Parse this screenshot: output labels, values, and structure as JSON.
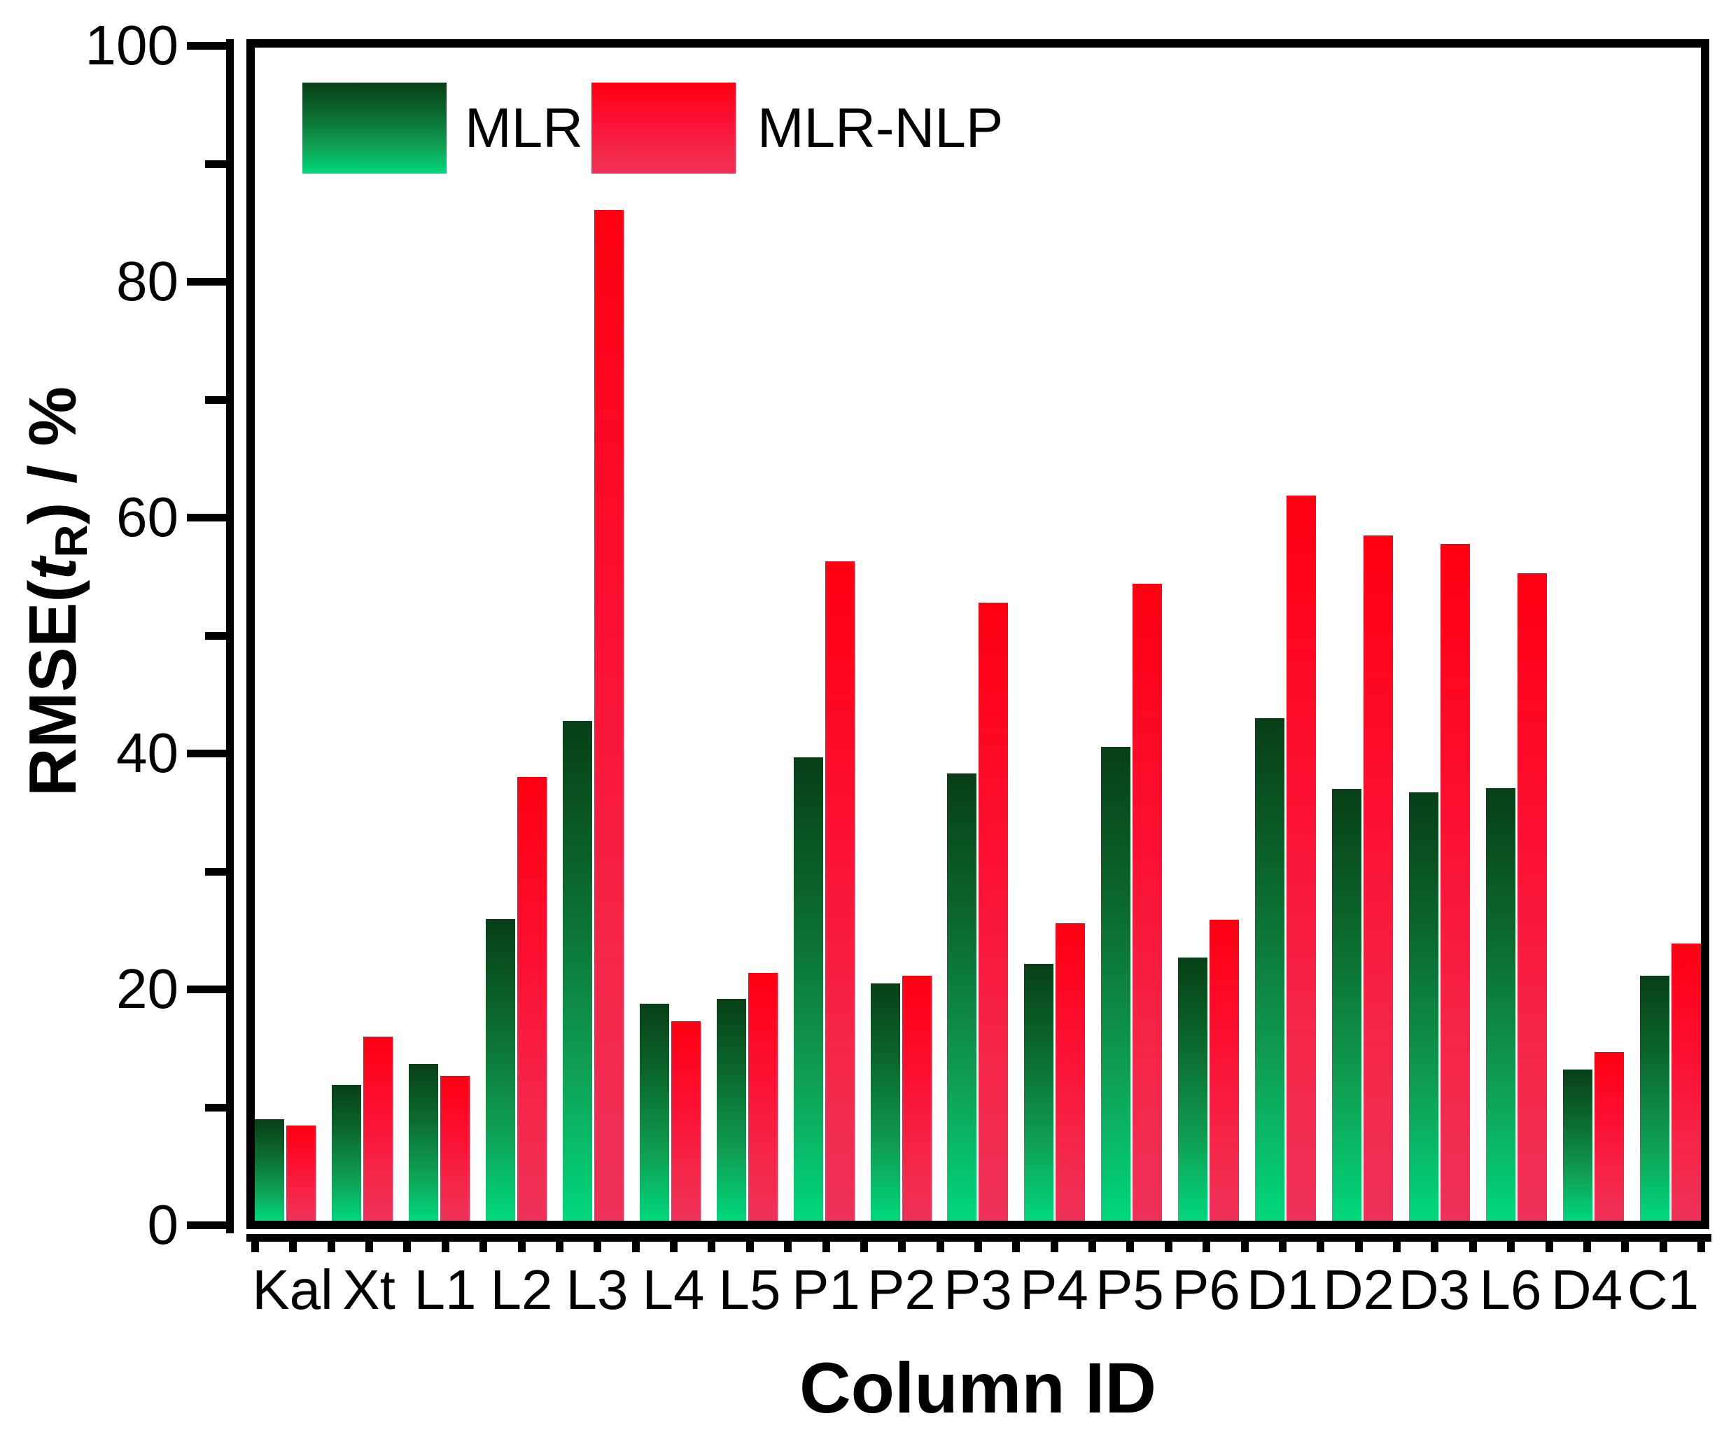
{
  "chart_data": {
    "type": "bar",
    "title": "",
    "xlabel": "Column ID",
    "ylabel": "RMSE(tR) / %",
    "ylabel_parts": {
      "prefix": "RMSE(",
      "variable": "t",
      "subscript": "R",
      "suffix": ") / %"
    },
    "ylim": [
      0,
      100
    ],
    "grid": false,
    "legend_position": "top-left inside",
    "categories": [
      "Kal",
      "Xt",
      "L1",
      "L2",
      "L3",
      "L4",
      "L5",
      "P1",
      "P2",
      "P3",
      "P4",
      "P5",
      "P6",
      "D1",
      "D2",
      "D3",
      "L6",
      "D4",
      "C1"
    ],
    "series": [
      {
        "name": "MLR",
        "values": [
          8.6,
          11.5,
          13.3,
          25.6,
          42.4,
          18.4,
          18.8,
          39.3,
          20.1,
          37.9,
          21.8,
          40.2,
          22.3,
          42.6,
          36.6,
          36.3,
          36.7,
          12.8,
          20.8
        ]
      },
      {
        "name": "MLR-NLP",
        "values": [
          8.1,
          15.6,
          12.3,
          37.6,
          85.7,
          16.9,
          21.0,
          55.9,
          20.8,
          52.4,
          25.2,
          54.0,
          25.5,
          61.5,
          58.1,
          57.4,
          54.9,
          14.3,
          23.5
        ]
      }
    ],
    "y_major_ticks": [
      0,
      20,
      40,
      60,
      80,
      100
    ],
    "y_minor_ticks": [
      10,
      30,
      50,
      70,
      90
    ]
  },
  "colors": {
    "mlr_gradient_top": "#073f16",
    "mlr_gradient_bottom": "#00d87c",
    "nlp_gradient_top": "#ff0012",
    "nlp_gradient_bottom": "#ee3158",
    "axis": "#000000",
    "background": "#ffffff"
  },
  "legend": {
    "mlr_label": "MLR",
    "nlp_label": "MLR-NLP"
  }
}
